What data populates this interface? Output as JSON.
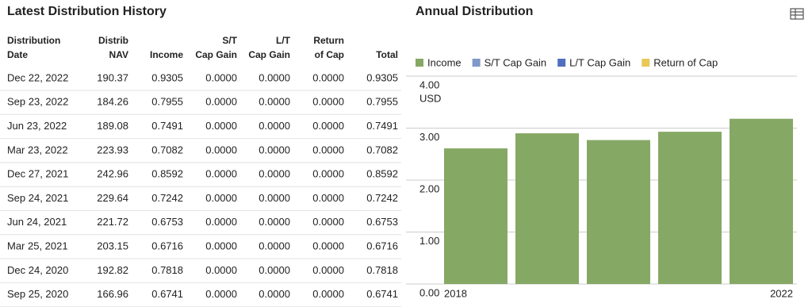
{
  "table": {
    "title": "Latest Distribution History",
    "headers": [
      [
        "Distribution",
        "Date"
      ],
      [
        "Distrib",
        "NAV"
      ],
      [
        "Income"
      ],
      [
        "S/T",
        "Cap Gain"
      ],
      [
        "L/T",
        "Cap Gain"
      ],
      [
        "Return",
        "of Cap"
      ],
      [
        "Total"
      ]
    ],
    "rows": [
      [
        "Dec 22, 2022",
        "190.37",
        "0.9305",
        "0.0000",
        "0.0000",
        "0.0000",
        "0.9305"
      ],
      [
        "Sep 23, 2022",
        "184.26",
        "0.7955",
        "0.0000",
        "0.0000",
        "0.0000",
        "0.7955"
      ],
      [
        "Jun 23, 2022",
        "189.08",
        "0.7491",
        "0.0000",
        "0.0000",
        "0.0000",
        "0.7491"
      ],
      [
        "Mar 23, 2022",
        "223.93",
        "0.7082",
        "0.0000",
        "0.0000",
        "0.0000",
        "0.7082"
      ],
      [
        "Dec 27, 2021",
        "242.96",
        "0.8592",
        "0.0000",
        "0.0000",
        "0.0000",
        "0.8592"
      ],
      [
        "Sep 24, 2021",
        "229.64",
        "0.7242",
        "0.0000",
        "0.0000",
        "0.0000",
        "0.7242"
      ],
      [
        "Jun 24, 2021",
        "221.72",
        "0.6753",
        "0.0000",
        "0.0000",
        "0.0000",
        "0.6753"
      ],
      [
        "Mar 25, 2021",
        "203.15",
        "0.6716",
        "0.0000",
        "0.0000",
        "0.0000",
        "0.6716"
      ],
      [
        "Dec 24, 2020",
        "192.82",
        "0.7818",
        "0.0000",
        "0.0000",
        "0.0000",
        "0.7818"
      ],
      [
        "Sep 25, 2020",
        "166.96",
        "0.6741",
        "0.0000",
        "0.0000",
        "0.0000",
        "0.6741"
      ]
    ]
  },
  "chart_data": {
    "type": "bar",
    "title": "Annual Distribution",
    "y_unit": "USD",
    "categories": [
      "2018",
      null,
      null,
      null,
      "2022"
    ],
    "series": [
      {
        "name": "Income",
        "color": "#86a865",
        "values": [
          2.61,
          2.9,
          2.77,
          2.93,
          3.18
        ]
      },
      {
        "name": "S/T Cap Gain",
        "color": "#7f99c9",
        "values": [
          0,
          0,
          0,
          0,
          0
        ]
      },
      {
        "name": "L/T Cap Gain",
        "color": "#4f6fbf",
        "values": [
          0,
          0,
          0,
          0,
          0
        ]
      },
      {
        "name": "Return of Cap",
        "color": "#e8c85a",
        "values": [
          0,
          0,
          0,
          0,
          0
        ]
      }
    ],
    "stacked": true,
    "ylim": [
      0,
      4
    ],
    "yticks": [
      {
        "value": 0,
        "label": "0.00"
      },
      {
        "value": 1,
        "label": "1.00"
      },
      {
        "value": 2,
        "label": "2.00"
      },
      {
        "value": 3,
        "label": "3.00"
      },
      {
        "value": 4,
        "label": "4.00"
      }
    ],
    "grid": true
  }
}
